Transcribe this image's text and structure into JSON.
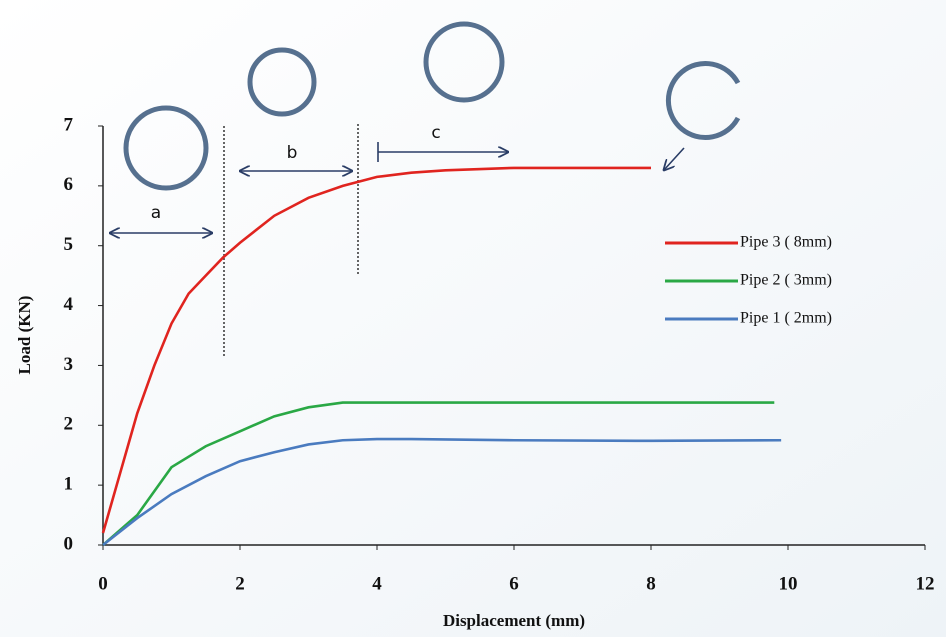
{
  "chart_data": {
    "type": "line",
    "xlabel": "Displacement (mm)",
    "ylabel": "Load (KN)",
    "xlim": [
      0,
      12
    ],
    "xticks": [
      0,
      2,
      4,
      6,
      8,
      10,
      12
    ],
    "ylim": [
      0,
      7
    ],
    "yticks": [
      0,
      1,
      2,
      3,
      4,
      5,
      6,
      7
    ],
    "series": [
      {
        "name": "Pipe 3 ( 8mm)",
        "color": "#e0241f",
        "x": [
          0,
          0.25,
          0.5,
          0.75,
          1,
          1.25,
          1.5,
          1.75,
          2,
          2.5,
          3,
          3.5,
          4,
          4.5,
          5,
          6,
          7,
          8
        ],
        "values": [
          0.2,
          1.2,
          2.2,
          3.0,
          3.7,
          4.2,
          4.5,
          4.8,
          5.05,
          5.5,
          5.8,
          6.0,
          6.15,
          6.22,
          6.26,
          6.3,
          6.3,
          6.3
        ]
      },
      {
        "name": "Pipe 2 ( 3mm)",
        "color": "#2aa845",
        "x": [
          0,
          0.5,
          1,
          1.5,
          2,
          2.5,
          3,
          3.5,
          4,
          6,
          8,
          9.8
        ],
        "values": [
          0,
          0.5,
          1.3,
          1.65,
          1.9,
          2.15,
          2.3,
          2.38,
          2.38,
          2.38,
          2.38,
          2.38
        ]
      },
      {
        "name": "Pipe 1 ( 2mm)",
        "color": "#4a7bbf",
        "x": [
          0,
          0.5,
          1,
          1.5,
          2,
          2.5,
          3,
          3.5,
          4,
          4.5,
          6,
          8,
          9.9
        ],
        "values": [
          0,
          0.45,
          0.85,
          1.15,
          1.4,
          1.55,
          1.68,
          1.75,
          1.77,
          1.77,
          1.75,
          1.74,
          1.75
        ]
      }
    ],
    "annotations": [
      "a",
      "b",
      "c"
    ]
  }
}
